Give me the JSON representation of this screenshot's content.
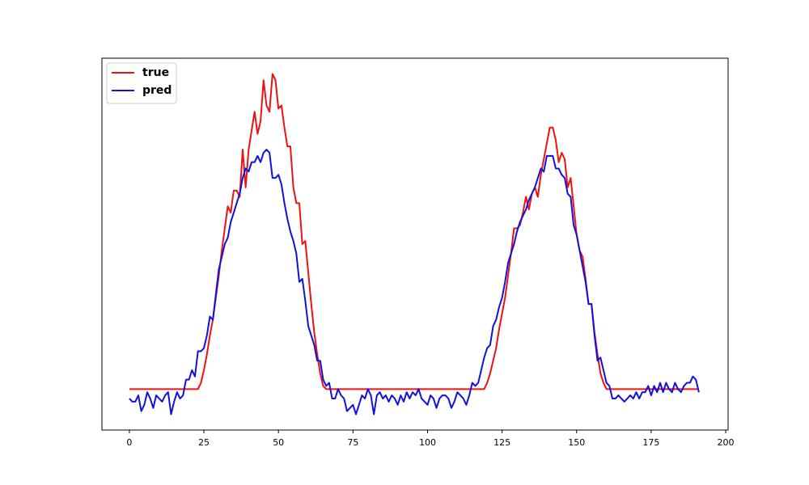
{
  "chart_data": {
    "type": "line",
    "x": [
      0,
      1,
      2,
      3,
      4,
      5,
      6,
      7,
      8,
      9,
      10,
      11,
      12,
      13,
      14,
      15,
      16,
      17,
      18,
      19,
      20,
      21,
      22,
      23,
      24,
      25,
      26,
      27,
      28,
      29,
      30,
      31,
      32,
      33,
      34,
      35,
      36,
      37,
      38,
      39,
      40,
      41,
      42,
      43,
      44,
      45,
      46,
      47,
      48,
      49,
      50,
      51,
      52,
      53,
      54,
      55,
      56,
      57,
      58,
      59,
      60,
      61,
      62,
      63,
      64,
      65,
      66,
      67,
      68,
      69,
      70,
      71,
      72,
      73,
      74,
      75,
      76,
      77,
      78,
      79,
      80,
      81,
      82,
      83,
      84,
      85,
      86,
      87,
      88,
      89,
      90,
      91,
      92,
      93,
      94,
      95,
      96,
      97,
      98,
      99,
      100,
      101,
      102,
      103,
      104,
      105,
      106,
      107,
      108,
      109,
      110,
      111,
      112,
      113,
      114,
      115,
      116,
      117,
      118,
      119,
      120,
      121,
      122,
      123,
      124,
      125,
      126,
      127,
      128,
      129,
      130,
      131,
      132,
      133,
      134,
      135,
      136,
      137,
      138,
      139,
      140,
      141,
      142,
      143,
      144,
      145,
      146,
      147,
      148,
      149,
      150,
      151,
      152,
      153,
      154,
      155,
      156,
      157,
      158,
      159,
      160,
      161,
      162,
      163,
      164,
      165,
      166,
      167,
      168,
      169,
      170,
      171,
      172,
      173,
      174,
      175,
      176,
      177,
      178,
      179,
      180,
      181,
      182,
      183,
      184,
      185,
      186,
      187,
      188,
      189,
      190,
      191
    ],
    "series": [
      {
        "name": "true",
        "color": "#ee1111",
        "values": [
          0,
          0,
          0,
          0,
          0,
          0,
          0,
          0,
          0,
          0,
          0,
          0,
          0,
          0,
          0,
          0,
          0,
          0,
          0,
          0,
          0,
          0,
          0,
          0,
          0.02,
          0.06,
          0.11,
          0.17,
          0.22,
          0.29,
          0.36,
          0.44,
          0.51,
          0.58,
          0.56,
          0.63,
          0.63,
          0.61,
          0.76,
          0.64,
          0.76,
          0.82,
          0.88,
          0.81,
          0.85,
          0.98,
          0.9,
          0.88,
          1.0,
          0.98,
          0.89,
          0.9,
          0.83,
          0.77,
          0.77,
          0.64,
          0.59,
          0.59,
          0.46,
          0.47,
          0.37,
          0.27,
          0.18,
          0.11,
          0.05,
          0.01,
          0,
          0,
          0,
          0,
          0,
          0,
          0,
          0,
          0,
          0,
          0,
          0,
          0,
          0,
          0,
          0,
          0,
          0,
          0,
          0,
          0,
          0,
          0,
          0,
          0,
          0,
          0,
          0,
          0,
          0,
          0,
          0,
          0,
          0,
          0,
          0,
          0,
          0,
          0,
          0,
          0,
          0,
          0,
          0,
          0,
          0,
          0,
          0,
          0,
          0,
          0,
          0,
          0,
          0,
          0.02,
          0.05,
          0.09,
          0.13,
          0.19,
          0.24,
          0.29,
          0.36,
          0.43,
          0.51,
          0.51,
          0.52,
          0.56,
          0.61,
          0.57,
          0.62,
          0.64,
          0.61,
          0.68,
          0.73,
          0.78,
          0.83,
          0.83,
          0.79,
          0.72,
          0.75,
          0.73,
          0.64,
          0.67,
          0.58,
          0.49,
          0.44,
          0.42,
          0.35,
          0.27,
          0.27,
          0.18,
          0.11,
          0.05,
          0.02,
          0,
          0,
          0,
          0,
          0,
          0,
          0,
          0,
          0,
          0,
          0,
          0,
          0,
          0,
          0,
          0,
          0,
          0,
          0,
          0,
          0,
          0,
          0,
          0,
          0,
          0,
          0,
          0,
          0,
          0,
          0,
          0
        ]
      },
      {
        "name": "pred",
        "color": "#1111dd",
        "values": [
          -0.03,
          -0.04,
          -0.04,
          -0.02,
          -0.07,
          -0.05,
          -0.01,
          -0.03,
          -0.06,
          -0.02,
          -0.03,
          -0.04,
          -0.02,
          -0.01,
          -0.08,
          -0.04,
          -0.01,
          -0.03,
          -0.02,
          0.03,
          0.03,
          0.06,
          0.04,
          0.12,
          0.12,
          0.13,
          0.17,
          0.23,
          0.22,
          0.3,
          0.38,
          0.42,
          0.46,
          0.48,
          0.53,
          0.56,
          0.59,
          0.62,
          0.67,
          0.7,
          0.69,
          0.72,
          0.72,
          0.74,
          0.72,
          0.75,
          0.76,
          0.75,
          0.67,
          0.67,
          0.68,
          0.65,
          0.59,
          0.54,
          0.5,
          0.47,
          0.43,
          0.34,
          0.35,
          0.28,
          0.2,
          0.17,
          0.14,
          0.09,
          0.09,
          0.03,
          0.01,
          0.02,
          -0.03,
          -0.03,
          0.0,
          -0.02,
          -0.03,
          -0.07,
          -0.06,
          -0.05,
          -0.08,
          -0.05,
          -0.02,
          -0.03,
          0.0,
          -0.02,
          -0.08,
          -0.02,
          -0.01,
          -0.03,
          -0.02,
          -0.04,
          -0.02,
          -0.03,
          -0.05,
          -0.02,
          -0.04,
          -0.01,
          -0.03,
          -0.01,
          -0.02,
          0.0,
          -0.03,
          -0.04,
          -0.05,
          -0.02,
          -0.03,
          -0.06,
          -0.03,
          -0.02,
          -0.02,
          -0.03,
          -0.06,
          -0.04,
          -0.01,
          -0.02,
          -0.03,
          -0.05,
          -0.02,
          0.02,
          0.01,
          0.02,
          0.06,
          0.1,
          0.13,
          0.14,
          0.2,
          0.22,
          0.26,
          0.29,
          0.34,
          0.4,
          0.43,
          0.46,
          0.5,
          0.53,
          0.55,
          0.57,
          0.6,
          0.62,
          0.64,
          0.67,
          0.7,
          0.69,
          0.74,
          0.74,
          0.74,
          0.7,
          0.7,
          0.68,
          0.67,
          0.62,
          0.61,
          0.52,
          0.49,
          0.44,
          0.39,
          0.34,
          0.27,
          0.27,
          0.17,
          0.09,
          0.1,
          0.06,
          0.02,
          0.01,
          -0.03,
          -0.03,
          -0.02,
          -0.03,
          -0.04,
          -0.03,
          -0.02,
          -0.03,
          -0.01,
          -0.03,
          -0.01,
          -0.01,
          0.01,
          -0.02,
          0.01,
          -0.01,
          0.02,
          -0.01,
          0.02,
          0.0,
          -0.01,
          0.02,
          0.0,
          -0.01,
          0.01,
          0.02,
          0.02,
          0.04,
          0.03,
          -0.01
        ]
      }
    ],
    "xlim": [
      -9.2,
      200.8
    ],
    "xticks": [
      0,
      25,
      50,
      75,
      100,
      125,
      150,
      175,
      200
    ],
    "ylim": [
      -0.13,
      1.05
    ],
    "legend": "upper left"
  }
}
